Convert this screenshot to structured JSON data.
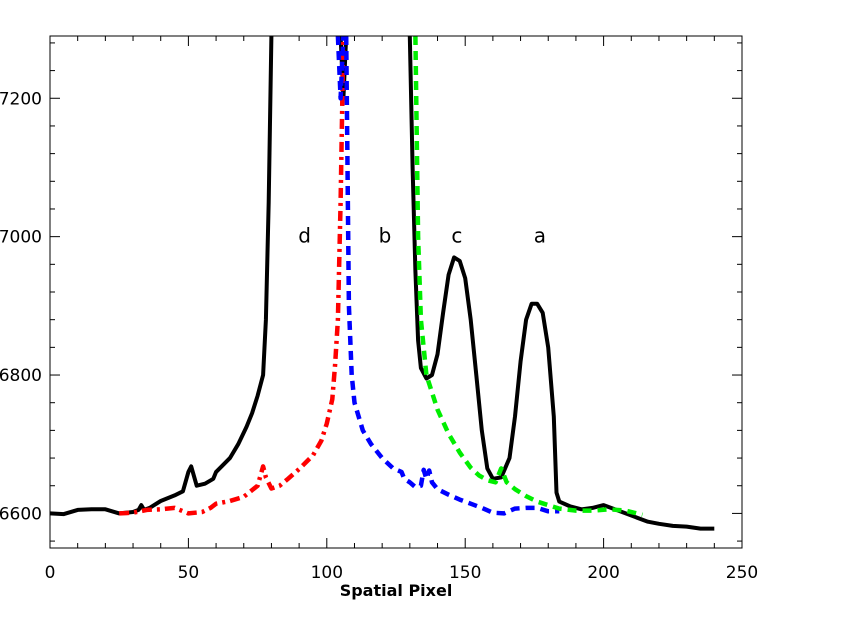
{
  "chart_data": {
    "type": "line",
    "title": "",
    "xlabel": "Spatial Pixel",
    "ylabel": "",
    "xlim": [
      0,
      250
    ],
    "ylim": [
      6550,
      7290
    ],
    "x_ticks": [
      0,
      50,
      100,
      150,
      200,
      250
    ],
    "x_tick_labels": [
      "0",
      "50",
      "100",
      "150",
      "200",
      "250"
    ],
    "y_ticks": [
      6600,
      6800,
      7000,
      7200
    ],
    "y_tick_labels": [
      "6600",
      "6800",
      "7000",
      "7200"
    ],
    "grid": false,
    "annotations": [
      {
        "text": "d",
        "x": 92,
        "y": 7000
      },
      {
        "text": "b",
        "x": 121,
        "y": 7000
      },
      {
        "text": "c",
        "x": 147,
        "y": 7000
      },
      {
        "text": "a",
        "x": 177,
        "y": 7000
      }
    ],
    "series": [
      {
        "color": "#000000",
        "style": "solid",
        "points": [
          [
            0,
            6600
          ],
          [
            5,
            6599
          ],
          [
            10,
            6605
          ],
          [
            15,
            6606
          ],
          [
            20,
            6606
          ],
          [
            25,
            6600
          ],
          [
            30,
            6602
          ],
          [
            32,
            6605
          ],
          [
            33,
            6612
          ],
          [
            34,
            6605
          ],
          [
            36,
            6608
          ],
          [
            40,
            6618
          ],
          [
            45,
            6626
          ],
          [
            48,
            6632
          ],
          [
            50,
            6660
          ],
          [
            51,
            6668
          ],
          [
            53,
            6640
          ],
          [
            56,
            6643
          ],
          [
            59,
            6650
          ],
          [
            60,
            6660
          ],
          [
            62,
            6668
          ],
          [
            65,
            6680
          ],
          [
            68,
            6700
          ],
          [
            71,
            6725
          ],
          [
            73,
            6745
          ],
          [
            75,
            6770
          ],
          [
            77,
            6800
          ],
          [
            78,
            6880
          ],
          [
            79,
            7050
          ],
          [
            80,
            7290
          ]
        ]
      },
      {
        "color": "#000000",
        "style": "solid",
        "points": [
          [
            105,
            7290
          ],
          [
            106,
            7200
          ],
          [
            107,
            7290
          ]
        ]
      },
      {
        "color": "#000000",
        "style": "solid",
        "points": [
          [
            130,
            7290
          ],
          [
            131,
            7100
          ],
          [
            132,
            6950
          ],
          [
            133,
            6850
          ],
          [
            134,
            6810
          ],
          [
            136,
            6795
          ],
          [
            138,
            6800
          ],
          [
            140,
            6830
          ],
          [
            142,
            6890
          ],
          [
            144,
            6945
          ],
          [
            146,
            6970
          ],
          [
            148,
            6965
          ],
          [
            150,
            6940
          ],
          [
            152,
            6880
          ],
          [
            154,
            6800
          ],
          [
            156,
            6720
          ],
          [
            158,
            6665
          ],
          [
            160,
            6650
          ],
          [
            163,
            6652
          ],
          [
            166,
            6680
          ],
          [
            168,
            6740
          ],
          [
            170,
            6820
          ],
          [
            172,
            6880
          ],
          [
            174,
            6903
          ],
          [
            176,
            6903
          ],
          [
            178,
            6890
          ],
          [
            180,
            6840
          ],
          [
            182,
            6740
          ],
          [
            183,
            6630
          ],
          [
            184,
            6617
          ],
          [
            188,
            6610
          ],
          [
            192,
            6606
          ],
          [
            196,
            6608
          ],
          [
            200,
            6612
          ],
          [
            204,
            6606
          ],
          [
            208,
            6600
          ],
          [
            212,
            6594
          ],
          [
            216,
            6588
          ],
          [
            220,
            6585
          ],
          [
            225,
            6582
          ],
          [
            230,
            6581
          ],
          [
            235,
            6578
          ],
          [
            240,
            6578
          ]
        ]
      },
      {
        "color": "#ff0000",
        "style": "dash-dot",
        "points": [
          [
            25,
            6600
          ],
          [
            30,
            6601
          ],
          [
            35,
            6605
          ],
          [
            40,
            6606
          ],
          [
            45,
            6608
          ],
          [
            50,
            6600
          ],
          [
            55,
            6602
          ],
          [
            58,
            6608
          ],
          [
            60,
            6614
          ],
          [
            65,
            6618
          ],
          [
            70,
            6624
          ],
          [
            75,
            6640
          ],
          [
            77,
            6668
          ],
          [
            78,
            6652
          ],
          [
            80,
            6636
          ],
          [
            83,
            6640
          ],
          [
            86,
            6650
          ],
          [
            90,
            6664
          ],
          [
            95,
            6684
          ],
          [
            98,
            6705
          ],
          [
            100,
            6730
          ],
          [
            102,
            6765
          ],
          [
            103,
            6815
          ],
          [
            104,
            6880
          ],
          [
            105,
            7050
          ],
          [
            106,
            7290
          ]
        ]
      },
      {
        "color": "#0000ff",
        "style": "dashed",
        "points": [
          [
            104,
            7290
          ],
          [
            105,
            7200
          ],
          [
            106,
            7290
          ]
        ]
      },
      {
        "color": "#0000ff",
        "style": "dashed",
        "points": [
          [
            107,
            7290
          ],
          [
            108,
            6900
          ],
          [
            109,
            6800
          ],
          [
            110,
            6760
          ],
          [
            113,
            6720
          ],
          [
            116,
            6700
          ],
          [
            120,
            6680
          ],
          [
            124,
            6665
          ],
          [
            127,
            6660
          ],
          [
            128,
            6650
          ],
          [
            130,
            6645
          ],
          [
            132,
            6638
          ],
          [
            134,
            6640
          ],
          [
            135,
            6663
          ],
          [
            136,
            6650
          ],
          [
            137,
            6662
          ],
          [
            138,
            6645
          ],
          [
            140,
            6635
          ],
          [
            144,
            6627
          ],
          [
            148,
            6620
          ],
          [
            152,
            6614
          ],
          [
            156,
            6608
          ],
          [
            160,
            6601
          ],
          [
            164,
            6600
          ],
          [
            168,
            6607
          ],
          [
            172,
            6608
          ],
          [
            176,
            6608
          ],
          [
            180,
            6603
          ],
          [
            184,
            6603
          ]
        ]
      },
      {
        "color": "#00ee00",
        "style": "dashed",
        "points": [
          [
            132,
            7290
          ],
          [
            133,
            7000
          ],
          [
            134,
            6880
          ],
          [
            136,
            6800
          ],
          [
            140,
            6750
          ],
          [
            144,
            6715
          ],
          [
            148,
            6688
          ],
          [
            152,
            6666
          ],
          [
            155,
            6655
          ],
          [
            158,
            6648
          ],
          [
            161,
            6645
          ],
          [
            163,
            6665
          ],
          [
            165,
            6645
          ],
          [
            168,
            6635
          ],
          [
            172,
            6625
          ],
          [
            176,
            6617
          ],
          [
            180,
            6612
          ],
          [
            184,
            6607
          ],
          [
            190,
            6604
          ],
          [
            196,
            6604
          ],
          [
            202,
            6606
          ],
          [
            208,
            6604
          ],
          [
            214,
            6598
          ]
        ]
      }
    ]
  }
}
